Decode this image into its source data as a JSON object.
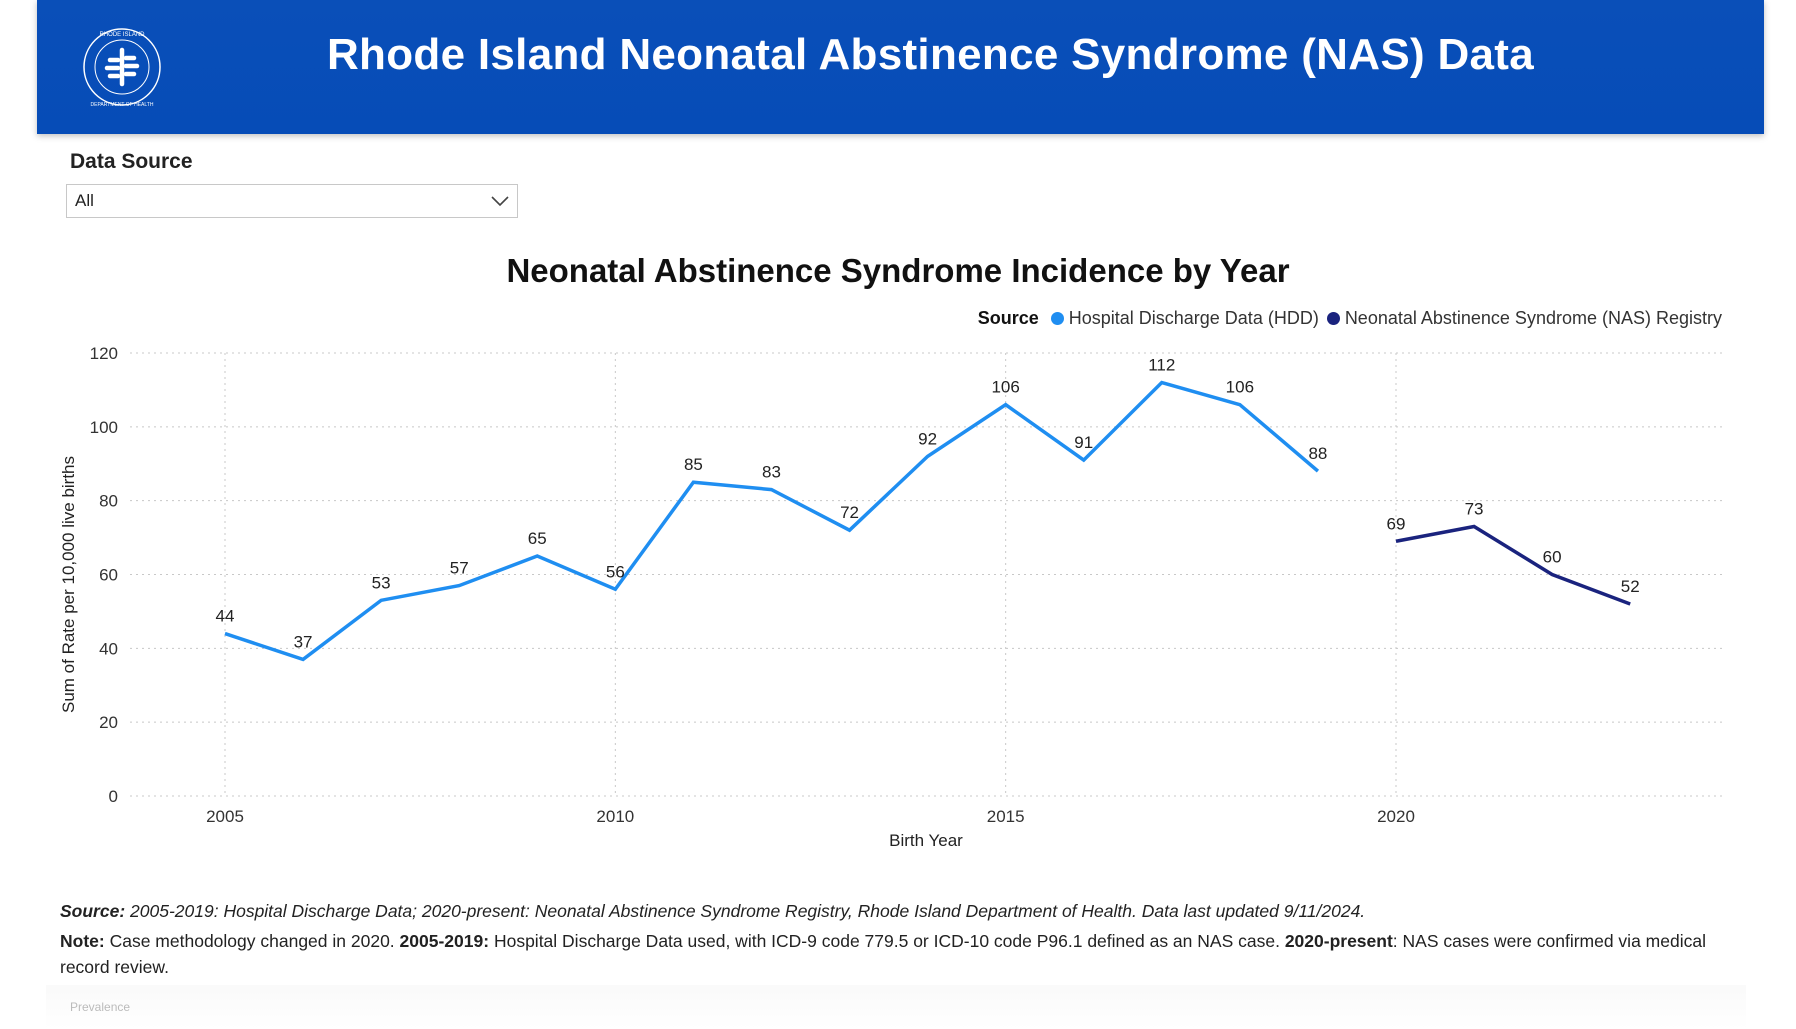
{
  "header": {
    "title": "Rhode Island Neonatal Abstinence Syndrome (NAS) Data",
    "logo_text": "RHODE ISLAND DEPARTMENT OF HEALTH"
  },
  "slicer": {
    "label": "Data Source",
    "value": "All"
  },
  "legend": {
    "title": "Source",
    "items": [
      {
        "label": "Hospital Discharge Data (HDD)",
        "color": "#1f8ef1"
      },
      {
        "label": "Neonatal Abstinence Syndrome (NAS) Registry",
        "color": "#1a237e"
      }
    ]
  },
  "chart_data": {
    "type": "line",
    "title": "Neonatal Abstinence Syndrome Incidence by Year",
    "xlabel": "Birth Year",
    "ylabel": "Sum of Rate per 10,000 live births",
    "ylim": [
      0,
      120
    ],
    "xlim": [
      2005,
      2023
    ],
    "yticks": [
      0,
      20,
      40,
      60,
      80,
      100,
      120
    ],
    "xticks": [
      2005,
      2010,
      2015,
      2020
    ],
    "grid": true,
    "legend_position": "top-right",
    "series": [
      {
        "name": "Hospital Discharge Data (HDD)",
        "color": "#1f8ef1",
        "x": [
          2005,
          2006,
          2007,
          2008,
          2009,
          2010,
          2011,
          2012,
          2013,
          2014,
          2015,
          2016,
          2017,
          2018,
          2019
        ],
        "values": [
          44,
          37,
          53,
          57,
          65,
          56,
          85,
          83,
          72,
          92,
          106,
          91,
          112,
          106,
          88
        ]
      },
      {
        "name": "Neonatal Abstinence Syndrome (NAS) Registry",
        "color": "#1a237e",
        "x": [
          2020,
          2021,
          2022,
          2023
        ],
        "values": [
          69,
          73,
          60,
          52
        ]
      }
    ]
  },
  "footnotes": {
    "source_label": "Source:",
    "source_text": "2005-2019: Hospital Discharge Data; 2020-present: Neonatal Abstinence Syndrome Registry, Rhode Island Department of Health. Data last updated 9/11/2024.",
    "note_label": "Note:",
    "note_text_1": "Case methodology changed in 2020.",
    "note_bold_2": "2005-2019:",
    "note_text_2": "Hospital Discharge Data used, with ICD-9 code 779.5 or ICD-10 code P96.1 defined as an NAS case.",
    "note_bold_3": "2020-present",
    "note_text_3": ": NAS cases were confirmed via medical record review."
  },
  "bottom_tab": {
    "label": "Prevalence"
  }
}
